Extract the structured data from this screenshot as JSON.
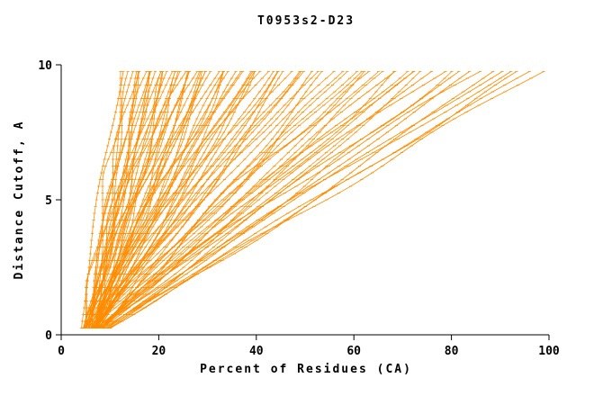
{
  "chart_data": {
    "type": "line",
    "title": "T0953s2-D23",
    "xlabel": "Percent of Residues (CA)",
    "ylabel": "Distance Cutoff, A",
    "xlim": [
      0,
      100
    ],
    "ylim": [
      0,
      10
    ],
    "x_ticks": [
      0,
      20,
      40,
      60,
      80,
      100
    ],
    "y_ticks": [
      0,
      5,
      10
    ],
    "grid": false,
    "legend": "none",
    "line_color": "#FF8C00",
    "axis_color": "#000000",
    "background": "#FFFFFF",
    "sample_step": 0.25,
    "y_min": 0.25,
    "y_max": 9.75,
    "curve_model": "Each series is one predicted model: percent of CA residues (x) under distance cutoff (y). x(y) = x_start + (x_top - x_start) * (y / 9.75)^shape, sampled every 0.25 A, monotonic non-decreasing, small waviness.",
    "series_format": [
      "x_start",
      "x_top",
      "shape"
    ],
    "series": [
      [
        4.0,
        12.5,
        1.3
      ],
      [
        4.5,
        13.0,
        1.1
      ],
      [
        5.0,
        14.0,
        0.95
      ],
      [
        5.5,
        14.5,
        1.2
      ],
      [
        4.2,
        15.0,
        1.05
      ],
      [
        6.0,
        15.5,
        0.9
      ],
      [
        4.8,
        16.0,
        1.15
      ],
      [
        5.2,
        16.5,
        1.0
      ],
      [
        6.5,
        17.0,
        1.25
      ],
      [
        4.4,
        17.5,
        0.85
      ],
      [
        5.8,
        18.0,
        1.1
      ],
      [
        5.0,
        18.5,
        0.95
      ],
      [
        6.2,
        19.0,
        1.2
      ],
      [
        4.6,
        19.5,
        1.0
      ],
      [
        5.4,
        20.0,
        0.9
      ],
      [
        6.8,
        20.5,
        1.15
      ],
      [
        4.9,
        21.0,
        1.05
      ],
      [
        5.6,
        21.5,
        1.25
      ],
      [
        6.0,
        22.0,
        0.88
      ],
      [
        5.1,
        22.5,
        1.12
      ],
      [
        6.4,
        23.0,
        0.98
      ],
      [
        4.7,
        23.5,
        1.18
      ],
      [
        5.9,
        24.0,
        0.92
      ],
      [
        6.6,
        24.5,
        1.08
      ],
      [
        5.3,
        25.0,
        1.22
      ],
      [
        6.1,
        25.5,
        0.86
      ],
      [
        4.8,
        26.0,
        1.14
      ],
      [
        5.7,
        26.5,
        1.02
      ],
      [
        6.9,
        27.0,
        0.94
      ],
      [
        5.2,
        27.5,
        1.2
      ],
      [
        6.3,
        28.0,
        1.0
      ],
      [
        5.5,
        28.5,
        0.9
      ],
      [
        6.7,
        29.0,
        1.1
      ],
      [
        5.0,
        30.0,
        1.05
      ],
      [
        5.4,
        31.0,
        0.95
      ],
      [
        6.0,
        32.0,
        1.15
      ],
      [
        5.8,
        33.0,
        0.88
      ],
      [
        6.5,
        34.0,
        1.05
      ],
      [
        5.2,
        35.0,
        1.2
      ],
      [
        6.2,
        36.0,
        0.92
      ],
      [
        5.6,
        37.0,
        1.1
      ],
      [
        6.8,
        38.0,
        0.98
      ],
      [
        5.9,
        39.0,
        1.18
      ],
      [
        6.4,
        40.0,
        0.9
      ],
      [
        5.3,
        41.0,
        1.08
      ],
      [
        6.6,
        42.0,
        1.22
      ],
      [
        5.7,
        43.0,
        0.94
      ],
      [
        6.1,
        44.0,
        1.12
      ],
      [
        5.5,
        45.0,
        1.0
      ],
      [
        6.9,
        46.0,
        0.86
      ],
      [
        5.8,
        47.0,
        1.16
      ],
      [
        6.3,
        48.0,
        0.96
      ],
      [
        5.6,
        49.0,
        1.06
      ],
      [
        6.7,
        50.0,
        1.14
      ],
      [
        6.0,
        30.5,
        1.0
      ],
      [
        5.9,
        33.5,
        1.02
      ],
      [
        6.2,
        36.5,
        1.09
      ],
      [
        5.4,
        39.5,
        0.97
      ],
      [
        6.0,
        52.0,
        1.05
      ],
      [
        6.5,
        54.0,
        0.92
      ],
      [
        5.8,
        56.0,
        1.15
      ],
      [
        6.8,
        58.0,
        0.98
      ],
      [
        6.2,
        60.0,
        1.1
      ],
      [
        5.9,
        62.0,
        0.88
      ],
      [
        6.6,
        64.0,
        1.2
      ],
      [
        6.1,
        66.0,
        0.95
      ],
      [
        6.9,
        68.0,
        1.08
      ],
      [
        6.3,
        70.0,
        1.0
      ],
      [
        5.7,
        72.0,
        1.12
      ],
      [
        6.4,
        74.0,
        0.9
      ],
      [
        6.0,
        53.0,
        1.18
      ],
      [
        6.7,
        57.0,
        0.96
      ],
      [
        6.2,
        61.0,
        1.04
      ],
      [
        5.8,
        65.0,
        1.14
      ],
      [
        6.5,
        69.0,
        0.93
      ],
      [
        6.1,
        73.0,
        1.06
      ],
      [
        6.6,
        76.0,
        1.02
      ],
      [
        6.2,
        78.0,
        1.12
      ],
      [
        6.8,
        80.0,
        0.94
      ],
      [
        6.4,
        82.0,
        1.08
      ],
      [
        7.0,
        84.0,
        0.98
      ],
      [
        6.5,
        86.0,
        1.16
      ],
      [
        6.9,
        88.0,
        0.9
      ],
      [
        6.3,
        90.0,
        1.05
      ],
      [
        7.1,
        92.0,
        1.1
      ],
      [
        6.7,
        94.0,
        0.96
      ],
      [
        7.2,
        96.0,
        1.04
      ],
      [
        6.8,
        98.0,
        1.0
      ]
    ]
  }
}
